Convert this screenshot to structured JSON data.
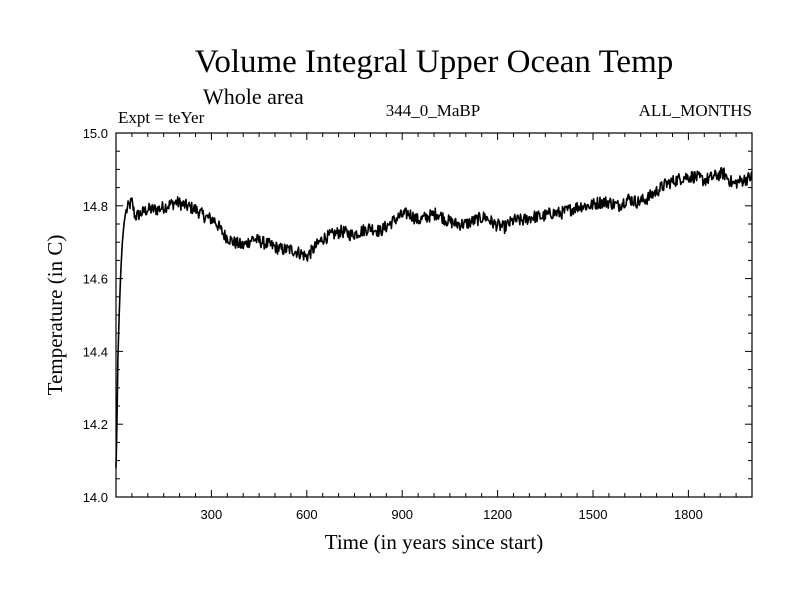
{
  "chart_data": {
    "type": "line",
    "title": "Volume Integral Upper Ocean Temp",
    "subtitle": "Whole area",
    "left_label": "Expt = teYer",
    "center_label": "344_0_MaBP",
    "right_label": "ALL_MONTHS",
    "xlabel": "Time (in years since start)",
    "ylabel": "Temperature (in C)",
    "xlim": [
      0,
      2000
    ],
    "ylim": [
      14.0,
      15.0
    ],
    "xticks": [
      300,
      600,
      900,
      1200,
      1500,
      1800
    ],
    "yticks": [
      14.0,
      14.2,
      14.4,
      14.6,
      14.8,
      15.0
    ],
    "ytick_labels": [
      "14.0",
      "14.2",
      "14.4",
      "14.6",
      "14.8",
      "15.0"
    ],
    "grid": false,
    "series": [
      {
        "name": "teYer",
        "color": "#000000",
        "x": [
          0,
          3,
          6,
          10,
          15,
          20,
          25,
          30,
          40,
          50,
          60,
          80,
          100,
          130,
          160,
          190,
          220,
          250,
          280,
          310,
          340,
          370,
          400,
          430,
          460,
          490,
          520,
          550,
          580,
          600,
          620,
          650,
          680,
          710,
          740,
          770,
          800,
          830,
          860,
          890,
          920,
          950,
          980,
          1010,
          1040,
          1070,
          1100,
          1130,
          1160,
          1190,
          1220,
          1250,
          1280,
          1310,
          1340,
          1370,
          1400,
          1430,
          1460,
          1490,
          1520,
          1550,
          1580,
          1610,
          1640,
          1670,
          1700,
          1730,
          1760,
          1790,
          1820,
          1850,
          1880,
          1910,
          1940,
          1970,
          2000
        ],
        "y": [
          14.08,
          14.2,
          14.38,
          14.5,
          14.62,
          14.7,
          14.75,
          14.78,
          14.8,
          14.81,
          14.77,
          14.78,
          14.79,
          14.79,
          14.8,
          14.81,
          14.8,
          14.79,
          14.77,
          14.76,
          14.72,
          14.7,
          14.69,
          14.71,
          14.7,
          14.69,
          14.68,
          14.68,
          14.67,
          14.66,
          14.68,
          14.71,
          14.72,
          14.73,
          14.72,
          14.73,
          14.74,
          14.73,
          14.75,
          14.77,
          14.78,
          14.76,
          14.77,
          14.78,
          14.76,
          14.75,
          14.75,
          14.76,
          14.77,
          14.75,
          14.74,
          14.76,
          14.76,
          14.77,
          14.77,
          14.78,
          14.78,
          14.79,
          14.8,
          14.8,
          14.81,
          14.81,
          14.8,
          14.82,
          14.81,
          14.82,
          14.84,
          14.86,
          14.87,
          14.88,
          14.88,
          14.87,
          14.88,
          14.89,
          14.86,
          14.87,
          14.88
        ]
      }
    ]
  }
}
